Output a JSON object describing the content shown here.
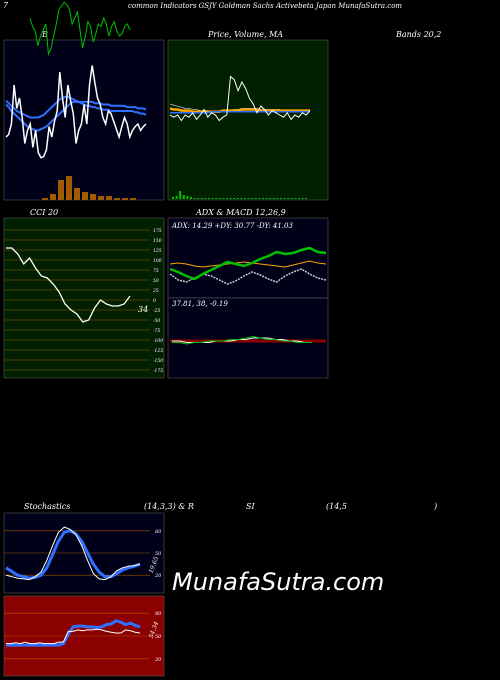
{
  "header": {
    "corner_mark": "7",
    "title": "common Indicators GSJY Goldman Sachs Activebeta Japan MunafaSutra.com"
  },
  "labels": {
    "b": "B",
    "price": "Price,  Volume,  MA",
    "bands": "Bands 20,2",
    "cci": "CCI 20",
    "adx": "ADX  & MACD 12,26,9",
    "adx_values": "ADX: 14.29  +DY: 30.77  -DY: 41.03",
    "macd_values": "37.81,  38,  -0.19",
    "stoch_left": "Stochastics",
    "stoch_params": "(14,3,3) & R",
    "rsi": "SI",
    "rsi_params": "(14,5",
    "rsi_close": ")",
    "cci_last": "34",
    "stoch_last": "19.65",
    "rsi_last": "54.34"
  },
  "watermark": "MunafaSutra.com",
  "colors": {
    "bb_bg": "#000018",
    "price_bg": "#002000",
    "cci_bg": "#002000",
    "adx_bg": "#000018",
    "stoch_bg": "#000018",
    "rsi_bg": "#8b0000",
    "grid_orange": "#a05a00",
    "blue_line": "#3070ff",
    "green_line": "#00c000",
    "orange_line": "#ffa500"
  },
  "chart_data": [
    {
      "type": "line",
      "name": "bollinger",
      "ylim": [
        0,
        100
      ],
      "series": [
        {
          "values": [
            30,
            32,
            40,
            70,
            52,
            60,
            45,
            25,
            35,
            40,
            22,
            35,
            18,
            14,
            15,
            20,
            38,
            30,
            42,
            50,
            80,
            60,
            45,
            70,
            58,
            48,
            25,
            35,
            40,
            55,
            40,
            70,
            85,
            72,
            60,
            55,
            45,
            40,
            50,
            48,
            42,
            36,
            30,
            38,
            45,
            40,
            30,
            35,
            38,
            40,
            35,
            38,
            40
          ]
        },
        {
          "values": [
            55,
            53,
            50,
            48,
            46,
            44,
            42,
            40,
            38,
            37,
            36,
            35,
            35,
            36,
            37,
            38,
            40,
            42,
            44,
            46,
            48,
            50,
            52,
            54,
            56,
            57,
            57,
            57,
            56,
            55,
            54,
            54,
            53,
            53,
            52,
            52,
            51,
            51,
            51,
            50,
            50,
            50,
            50,
            50,
            50,
            50,
            50,
            50,
            49,
            49,
            48,
            48,
            47
          ]
        },
        {
          "values": [
            58,
            56,
            54,
            52,
            50,
            49,
            48,
            47,
            46,
            45,
            45,
            45,
            45,
            46,
            47,
            49,
            51,
            53,
            55,
            57,
            59,
            60,
            61,
            61,
            60,
            59,
            58,
            57,
            57,
            57,
            57,
            57,
            57,
            56,
            56,
            56,
            55,
            55,
            55,
            54,
            54,
            54,
            54,
            54,
            54,
            53,
            53,
            53,
            53,
            52,
            52,
            52,
            51
          ]
        },
        {
          "values": [
            85,
            78,
            74,
            62,
            70,
            75,
            80,
            55,
            60,
            70,
            80,
            92,
            95,
            98,
            96,
            92,
            80,
            85,
            90,
            75,
            60,
            70,
            82,
            78,
            65,
            72,
            80,
            78,
            85,
            80,
            70,
            78,
            82,
            74,
            70,
            72,
            78,
            80,
            75
          ]
        }
      ]
    },
    {
      "type": "line",
      "name": "price-volume-ma",
      "ylim": [
        0,
        100
      ],
      "series": [
        {
          "values": [
            50,
            48,
            50,
            45,
            50,
            48,
            52,
            46,
            50,
            55,
            48,
            52,
            50,
            45,
            48,
            50,
            85,
            82,
            72,
            80,
            74,
            65,
            60,
            52,
            58,
            55,
            50,
            54,
            52,
            50,
            48,
            52,
            46,
            50,
            48,
            52,
            50,
            54
          ]
        },
        {
          "values": [
            60,
            59,
            58,
            57,
            56,
            56,
            55,
            55,
            54,
            54,
            54,
            53,
            53,
            53,
            53,
            54,
            54,
            55,
            55,
            56,
            56,
            56,
            56,
            56,
            55,
            55,
            55,
            55,
            55,
            55,
            54,
            54,
            54,
            54,
            54,
            54,
            54,
            54
          ]
        },
        {
          "values": [
            56,
            55,
            55,
            54,
            54,
            54,
            53,
            53,
            53,
            53,
            53,
            53,
            53,
            53,
            54,
            54,
            54,
            54,
            54,
            55,
            55,
            55,
            55,
            55,
            54,
            54,
            54,
            54,
            54,
            54,
            54,
            54,
            54,
            54,
            54,
            54,
            54,
            54
          ]
        },
        {
          "values": [
            52,
            52,
            52,
            52,
            52,
            52,
            52,
            52,
            52,
            52,
            52,
            53,
            53,
            53,
            53,
            53,
            53,
            53,
            53,
            53,
            53,
            53,
            53,
            53,
            53,
            53,
            53,
            53,
            53,
            53,
            53,
            53,
            53,
            53,
            53,
            53,
            53,
            53
          ]
        }
      ],
      "volume": [
        2,
        3,
        8,
        4,
        3,
        2,
        1,
        1,
        1,
        1,
        1,
        1,
        1,
        1,
        1,
        1,
        1,
        1,
        1,
        1,
        1,
        1,
        1,
        1,
        1,
        1,
        1,
        1,
        1,
        1,
        1,
        1,
        1,
        1,
        1,
        1,
        1,
        1
      ]
    },
    {
      "type": "line",
      "name": "cci",
      "ylim": [
        -175,
        175
      ],
      "yticks": [
        175,
        150,
        125,
        100,
        75,
        50,
        25,
        0,
        -25,
        -50,
        -75,
        -100,
        -125,
        -150,
        -175
      ],
      "series": [
        {
          "values": [
            130,
            130,
            115,
            90,
            105,
            80,
            60,
            55,
            40,
            20,
            -10,
            -25,
            -35,
            -55,
            -50,
            -20,
            0,
            -10,
            -15,
            -15,
            -10,
            10
          ]
        }
      ]
    },
    {
      "type": "line",
      "name": "adx",
      "ylim": [
        0,
        60
      ],
      "series": [
        {
          "values": [
            25,
            22,
            18,
            15,
            20,
            24,
            28,
            32,
            30,
            28,
            31,
            35,
            38,
            42,
            40,
            41,
            44,
            46,
            42,
            41
          ]
        },
        {
          "values": [
            30,
            31,
            30,
            28,
            27,
            28,
            29,
            30,
            31,
            32,
            31,
            30,
            29,
            28,
            27,
            29,
            31,
            33,
            31,
            30
          ]
        },
        {
          "values": [
            20,
            14,
            12,
            16,
            20,
            18,
            14,
            10,
            13,
            18,
            22,
            19,
            15,
            12,
            18,
            22,
            25,
            20,
            16,
            14
          ]
        }
      ]
    },
    {
      "type": "line",
      "name": "macd",
      "ylim": [
        -10,
        10
      ],
      "series": [
        {
          "values": [
            -1,
            -1,
            -2,
            -1,
            -1,
            0,
            0,
            0,
            1,
            1,
            2,
            3,
            2,
            1,
            1,
            0,
            0,
            -1,
            -1,
            -1
          ]
        },
        {
          "values": [
            0,
            0,
            -1,
            -1,
            -1,
            -1,
            0,
            0,
            0,
            1,
            1,
            2,
            2,
            2,
            1,
            1,
            0,
            0,
            -1,
            -1
          ]
        }
      ]
    },
    {
      "type": "line",
      "name": "stochastics",
      "ylim": [
        0,
        100
      ],
      "yticks": [
        80,
        50,
        20
      ],
      "series": [
        {
          "values": [
            20,
            18,
            16,
            15,
            14,
            18,
            24,
            40,
            60,
            78,
            85,
            82,
            75,
            60,
            40,
            22,
            15,
            14,
            18,
            26,
            30,
            32,
            33,
            35
          ]
        },
        {
          "values": [
            30,
            25,
            20,
            18,
            16,
            17,
            20,
            30,
            48,
            66,
            78,
            80,
            76,
            66,
            50,
            35,
            24,
            18,
            18,
            22,
            27,
            30,
            32,
            35
          ]
        }
      ]
    },
    {
      "type": "line",
      "name": "rsi",
      "ylim": [
        0,
        100
      ],
      "yticks": [
        80,
        50,
        20
      ],
      "series": [
        {
          "values": [
            40,
            40,
            41,
            40,
            42,
            40,
            40,
            41,
            40,
            40,
            40,
            42,
            42,
            56,
            56,
            58,
            57,
            58,
            58,
            59,
            58,
            56,
            55,
            54,
            54,
            58,
            57,
            55,
            54
          ]
        },
        {
          "values": [
            38,
            38,
            38,
            38,
            38,
            38,
            38,
            38,
            38,
            38,
            38,
            38,
            40,
            52,
            62,
            63,
            63,
            62,
            62,
            61,
            62,
            65,
            66,
            70,
            68,
            65,
            67,
            64,
            62
          ]
        }
      ]
    }
  ]
}
